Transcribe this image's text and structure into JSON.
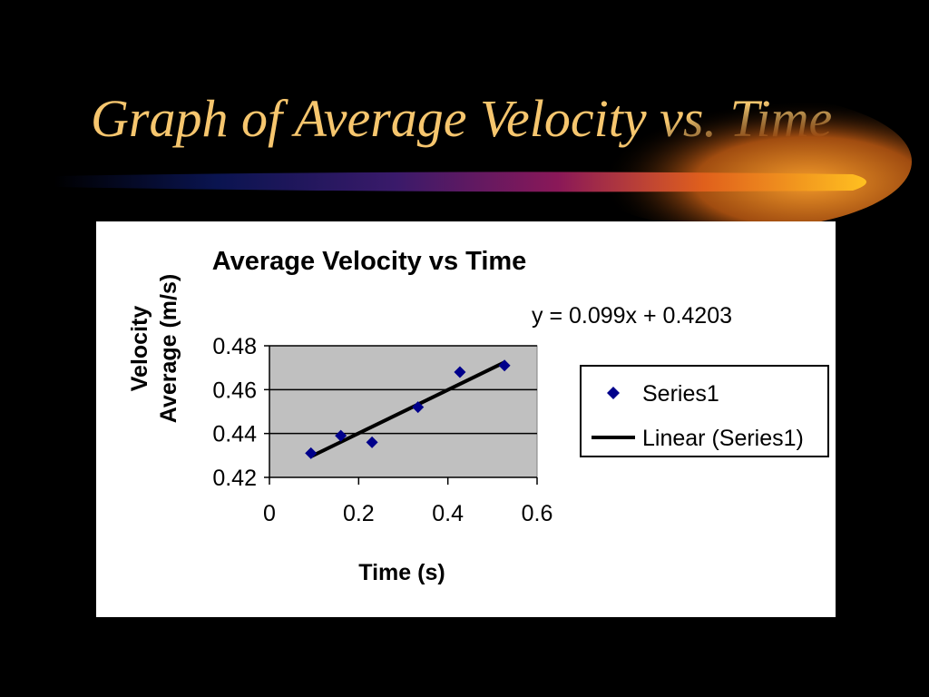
{
  "slide": {
    "title": "Graph of Average Velocity vs. Time",
    "title_color": "#F6C66E",
    "background_color": "#000000"
  },
  "chart_data": {
    "type": "scatter",
    "title": "Average Velocity vs Time",
    "xlabel": "Time (s)",
    "ylabel_lines": [
      "Velocity",
      "Average (m/s)"
    ],
    "xlim": [
      0,
      0.6
    ],
    "ylim": [
      0.42,
      0.48
    ],
    "x_ticks": [
      "0",
      "0.2",
      "0.4",
      "0.6"
    ],
    "y_ticks": [
      "0.42",
      "0.44",
      "0.46",
      "0.48"
    ],
    "x_tick_values": [
      0,
      0.2,
      0.4,
      0.6
    ],
    "y_tick_values": [
      0.42,
      0.44,
      0.46,
      0.48
    ],
    "grid": "horizontal",
    "plot_background": "#C0C0C0",
    "marker_color": "#00008B",
    "series": [
      {
        "name": "Series1",
        "x": [
          0.093,
          0.16,
          0.23,
          0.333,
          0.427,
          0.527
        ],
        "y": [
          0.431,
          0.439,
          0.436,
          0.452,
          0.468,
          0.471
        ]
      }
    ],
    "trendline": {
      "name": "Linear (Series1)",
      "equation": "y = 0.099x + 0.4203",
      "slope": 0.099,
      "intercept": 0.4203
    },
    "legend": {
      "position": "right",
      "entries": [
        "Series1",
        "Linear (Series1)"
      ]
    }
  }
}
